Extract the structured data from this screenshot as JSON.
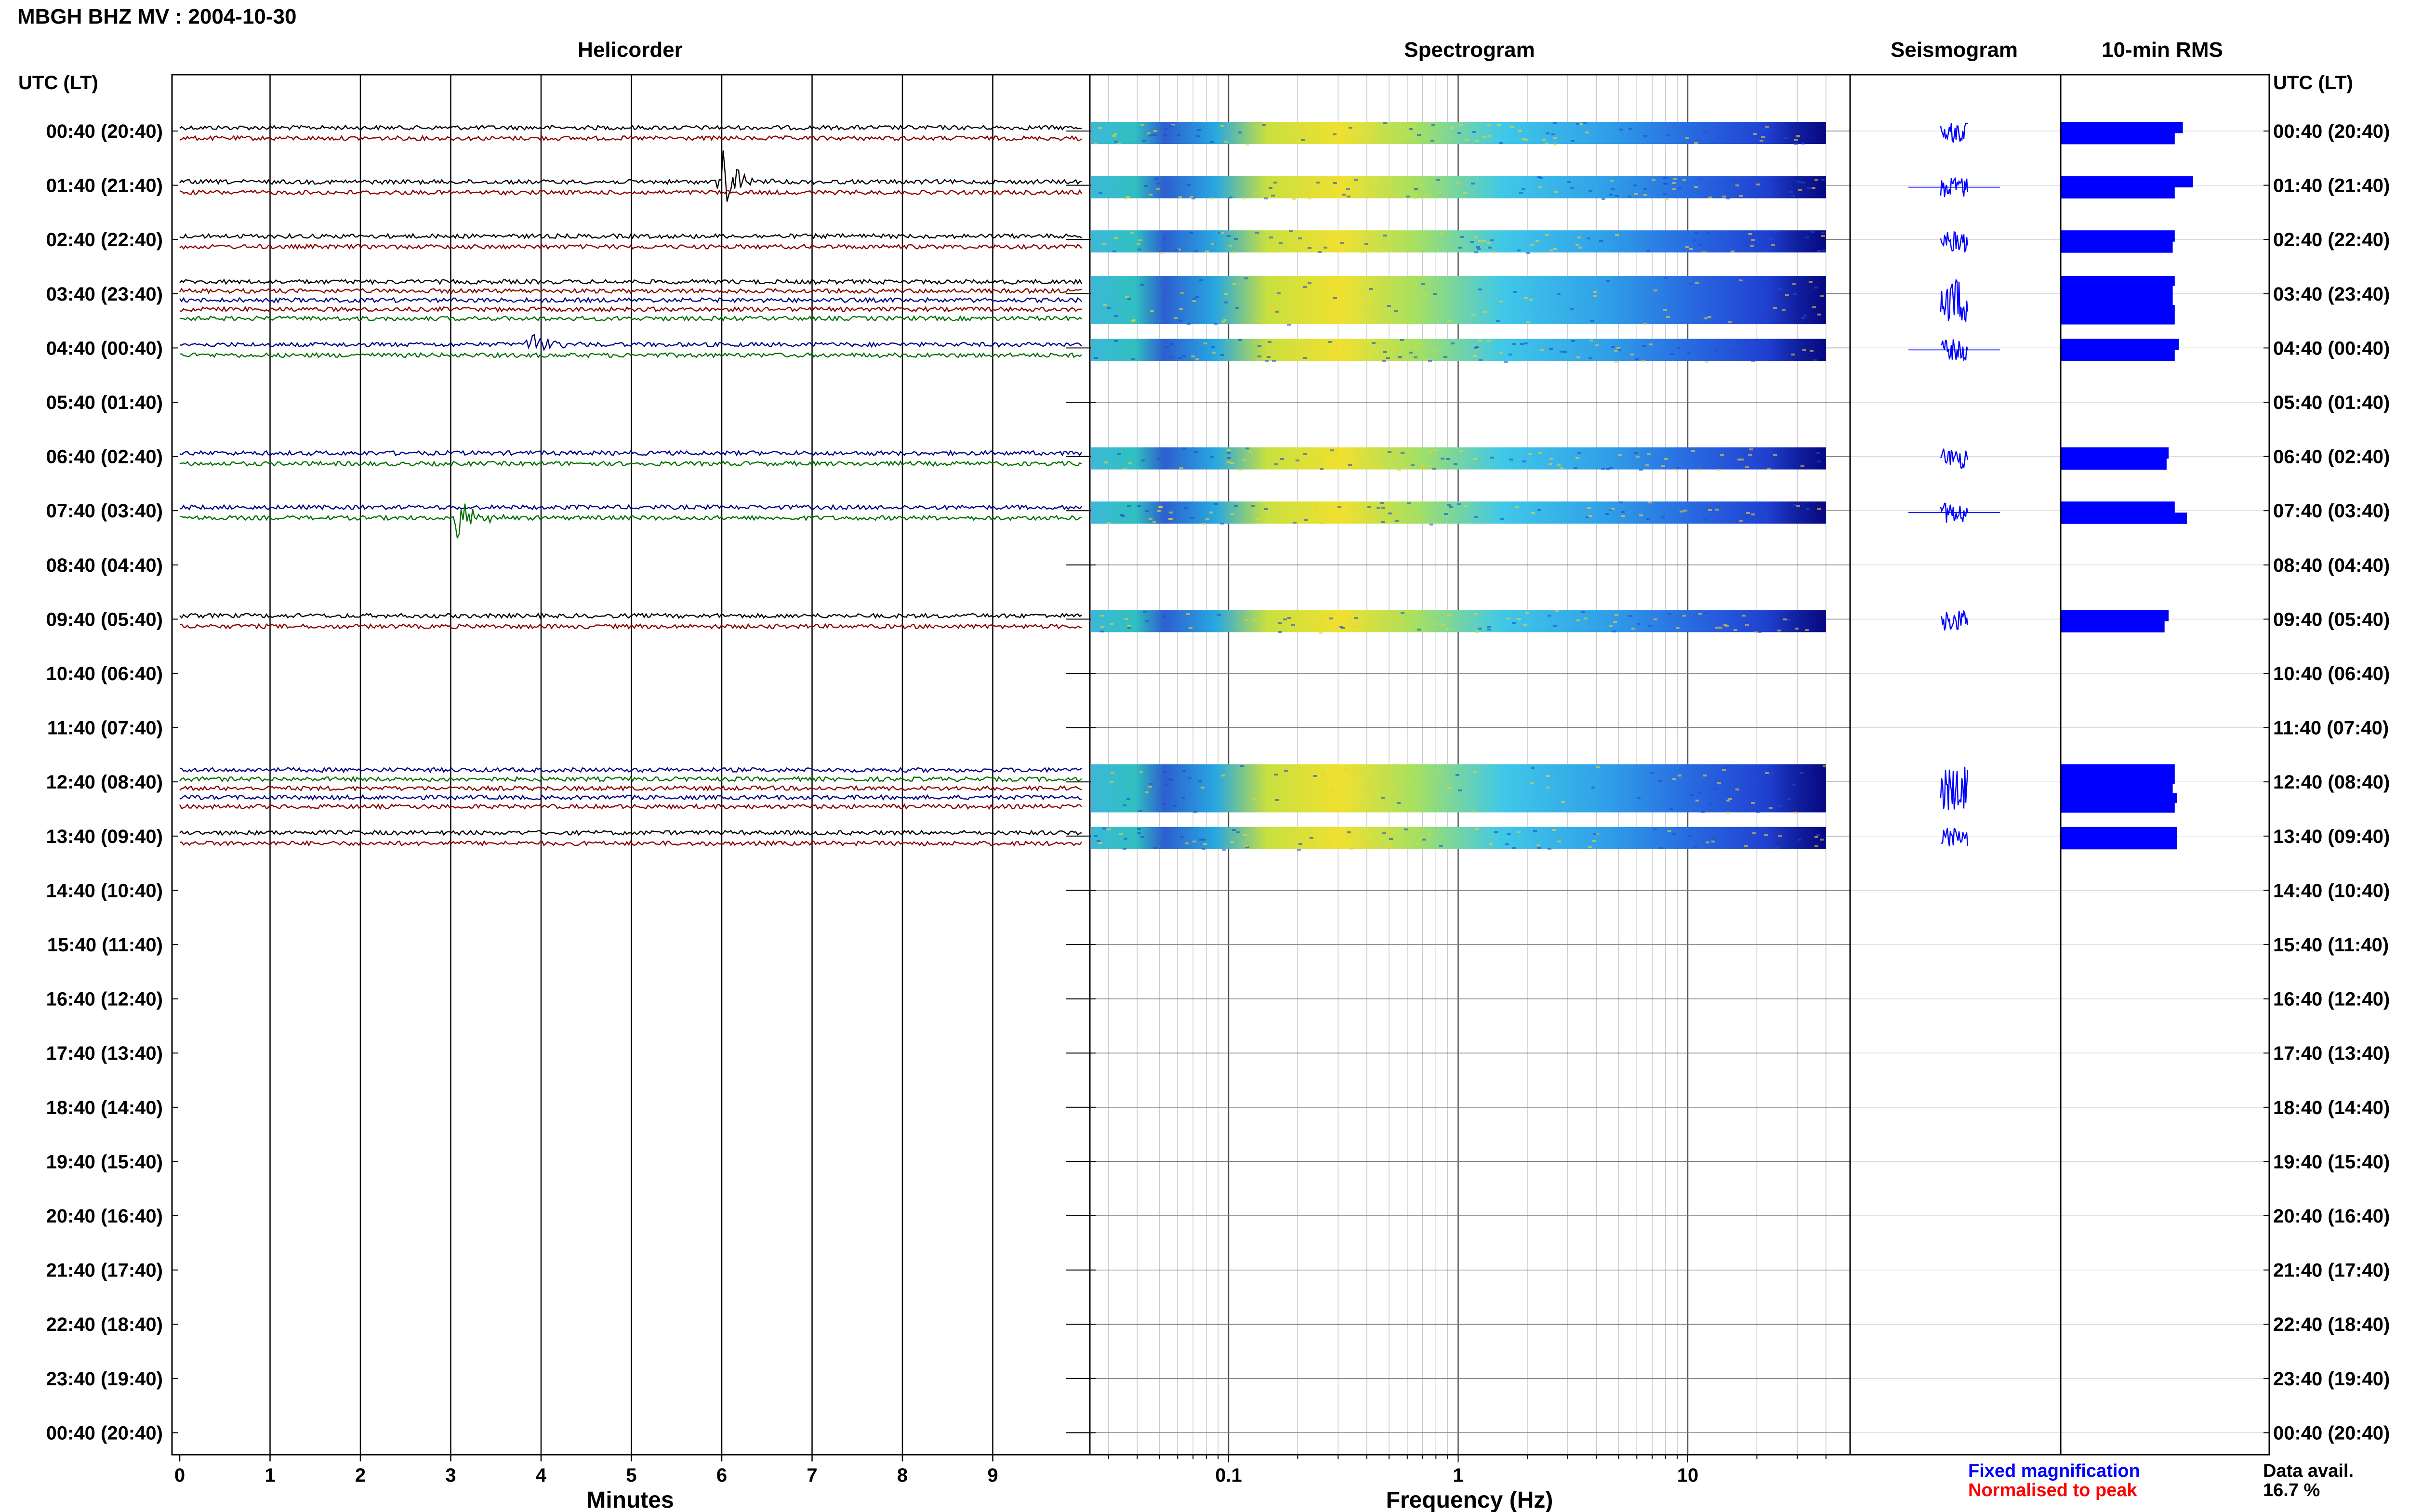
{
  "chart_data": {
    "type": "helicorder",
    "title": "MBGH BHZ MV : 2004-10-30",
    "panels": {
      "helicorder": "Helicorder",
      "spectrogram": "Spectrogram",
      "seismogram": "Seismogram",
      "rms": "10-min RMS"
    },
    "row_axis_label": "UTC (LT)",
    "rows": [
      "00:40 (20:40)",
      "01:40 (21:40)",
      "02:40 (22:40)",
      "03:40 (23:40)",
      "04:40 (00:40)",
      "05:40 (01:40)",
      "06:40 (02:40)",
      "07:40 (03:40)",
      "08:40 (04:40)",
      "09:40 (05:40)",
      "10:40 (06:40)",
      "11:40 (07:40)",
      "12:40 (08:40)",
      "13:40 (09:40)",
      "14:40 (10:40)",
      "15:40 (11:40)",
      "16:40 (12:40)",
      "17:40 (13:40)",
      "18:40 (14:40)",
      "19:40 (15:40)",
      "20:40 (16:40)",
      "21:40 (17:40)",
      "22:40 (18:40)",
      "23:40 (19:40)",
      "00:40 (20:40)"
    ],
    "helicorder_x": {
      "label": "Minutes",
      "ticks": [
        "0",
        "1",
        "2",
        "3",
        "4",
        "5",
        "6",
        "7",
        "8",
        "9"
      ],
      "range": [
        0,
        10
      ]
    },
    "spectrogram_x": {
      "label": "Frequency (Hz)",
      "scale": "log",
      "ticks": [
        "0.1",
        "1",
        "10"
      ],
      "range": [
        0.025,
        40
      ]
    },
    "data_rows": [
      {
        "row": 0,
        "traces": [
          "black",
          "darkred"
        ],
        "events": [],
        "rms": [
          0.6,
          0.56
        ]
      },
      {
        "row": 1,
        "traces": [
          "black",
          "darkred"
        ],
        "events": [
          {
            "trace": 0,
            "minute": 6.0,
            "amp": 5
          }
        ],
        "rms": [
          0.65,
          0.56
        ]
      },
      {
        "row": 2,
        "traces": [
          "black",
          "darkred"
        ],
        "events": [],
        "rms": [
          0.56,
          0.55
        ]
      },
      {
        "row": 3,
        "traces": [
          "black",
          "darkred",
          "navy",
          "darkred",
          "green"
        ],
        "events": [],
        "rms": [
          0.56,
          0.55,
          0.55,
          0.56,
          0.56
        ]
      },
      {
        "row": 4,
        "traces": [
          "navy",
          "green"
        ],
        "events": [
          {
            "trace": 0,
            "minute": 3.9,
            "amp": 2
          }
        ],
        "rms": [
          0.58,
          0.56
        ]
      },
      {
        "row": 6,
        "traces": [
          "navy",
          "green"
        ],
        "events": [],
        "rms": [
          0.53,
          0.52
        ]
      },
      {
        "row": 7,
        "traces": [
          "navy",
          "green"
        ],
        "events": [
          {
            "trace": 1,
            "minute": 3.05,
            "amp": 4
          }
        ],
        "rms": [
          0.56,
          0.62
        ]
      },
      {
        "row": 9,
        "traces": [
          "black",
          "darkred"
        ],
        "events": [],
        "rms": [
          0.53,
          0.51
        ]
      },
      {
        "row": 12,
        "traces": [
          "navy",
          "green",
          "darkred",
          "navy",
          "darkred"
        ],
        "events": [],
        "rms": [
          0.56,
          0.56,
          0.55,
          0.57,
          0.56
        ]
      },
      {
        "row": 13,
        "traces": [
          "black",
          "darkred"
        ],
        "events": [],
        "rms": [
          0.57,
          0.57
        ]
      }
    ],
    "legend": {
      "fixed": "Fixed magnification",
      "normalised": "Normalised to peak",
      "fixed_color": "#0000ff",
      "normalised_color": "#ff0000"
    },
    "availability": {
      "label": "Data avail.",
      "value": "16.7 %"
    }
  }
}
